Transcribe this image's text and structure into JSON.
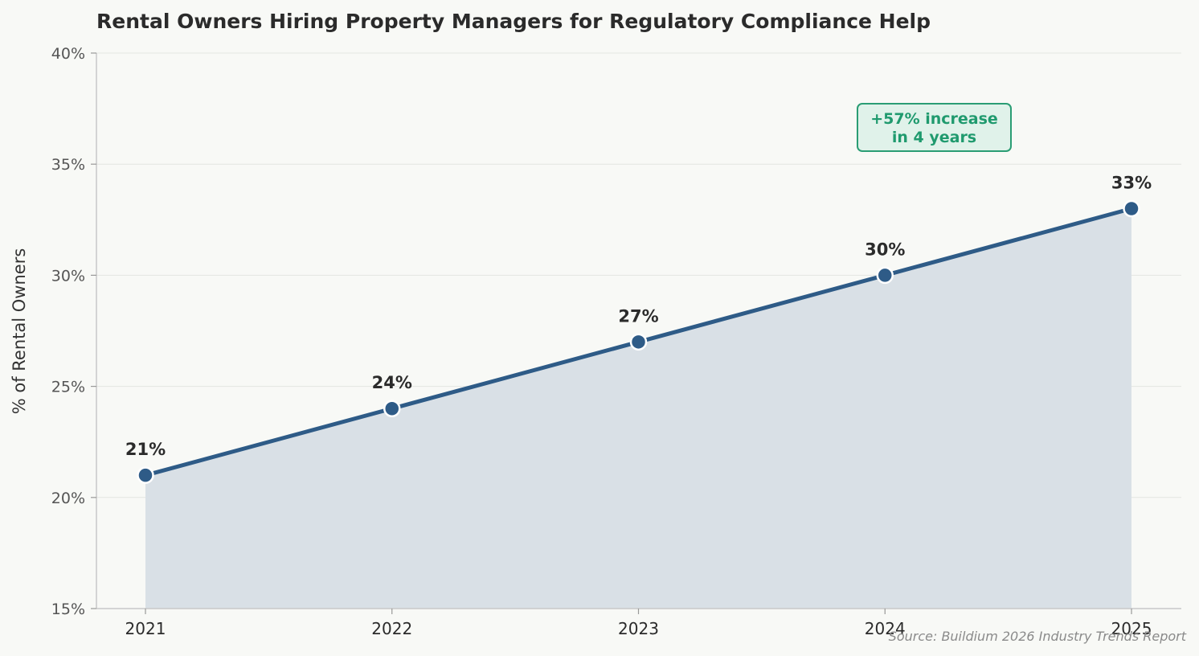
{
  "chart_data": {
    "type": "area",
    "title": "Rental Owners Hiring Property Managers for Regulatory Compliance Help",
    "xlabel": "",
    "ylabel": "% of Rental Owners",
    "categories": [
      "2021",
      "2022",
      "2023",
      "2024",
      "2025"
    ],
    "values": [
      21,
      24,
      27,
      30,
      33
    ],
    "data_labels": [
      "21%",
      "24%",
      "27%",
      "30%",
      "33%"
    ],
    "ylim": [
      15,
      40
    ],
    "yticks": [
      15,
      20,
      25,
      30,
      35,
      40
    ],
    "ytick_labels": [
      "15%",
      "20%",
      "25%",
      "30%",
      "35%",
      "40%"
    ],
    "grid": "horizontal",
    "annotation": {
      "line1": "+57% increase",
      "line2": "in 4 years"
    },
    "source": "Source: Buildium 2026 Industry Trends Report",
    "colors": {
      "line": "#2e5b87",
      "fill": "#d9e0e6",
      "annotation_text": "#1f9a6e",
      "annotation_border": "#2a9d74",
      "annotation_bg": "#e0f2ea",
      "background": "#f8f9f6"
    }
  }
}
